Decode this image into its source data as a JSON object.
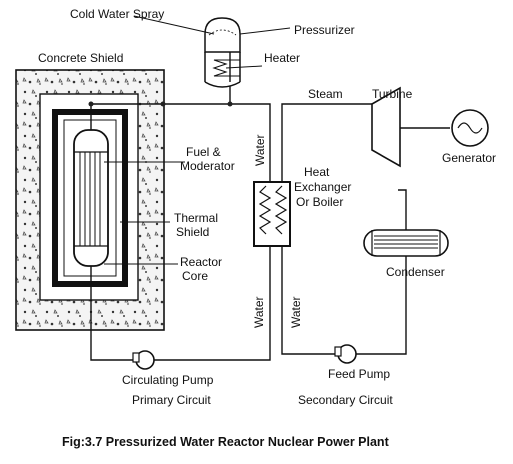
{
  "labels": {
    "cold_water_spray": "Cold Water Spray",
    "pressurizer": "Pressurizer",
    "heater": "Heater",
    "concrete_shield": "Concrete Shield",
    "steam": "Steam",
    "turbine": "Turbine",
    "generator": "Generator",
    "fuel_line1": "Fuel &",
    "fuel_line2": "Moderator",
    "water_top": "Water",
    "heat_exchanger_line1": "Heat",
    "heat_exchanger_line2": "Exchanger",
    "heat_exchanger_line3": "Or Boiler",
    "thermal_shield_line1": "Thermal",
    "thermal_shield_line2": "Shield",
    "reactor_core_line1": "Reactor",
    "reactor_core_line2": "Core",
    "condenser": "Condenser",
    "water_left": "Water",
    "water_right": "Water",
    "circulating_pump": "Circulating Pump",
    "primary_circuit": "Primary Circuit",
    "feed_pump": "Feed Pump",
    "secondary_circuit": "Secondary  Circuit"
  },
  "caption": "Fig:3.7 Pressurized Water Reactor Nuclear Power Plant"
}
